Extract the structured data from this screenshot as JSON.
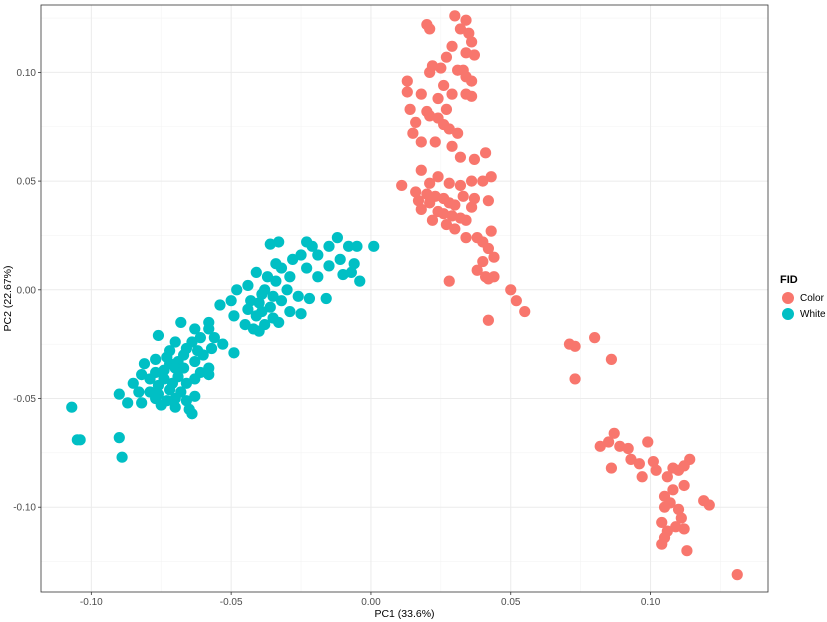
{
  "chart_data": {
    "type": "scatter",
    "title": "",
    "xlabel": "PC1 (33.6%)",
    "ylabel": "PC2 (22.67%)",
    "xlim": [
      -0.118,
      0.142
    ],
    "ylim": [
      -0.139,
      0.131
    ],
    "xticks": [
      -0.1,
      -0.05,
      0.0,
      0.05,
      0.1
    ],
    "xtick_labels": [
      "-0.10",
      "-0.05",
      "0.00",
      "0.05",
      "0.10"
    ],
    "yticks": [
      0.1,
      0.05,
      0.0,
      -0.05,
      -0.1
    ],
    "ytick_labels": [
      "0.10",
      "0.05",
      "0.00",
      "-0.05",
      "-0.10"
    ],
    "grid": true,
    "legend": {
      "title": "FID",
      "placement": "right"
    },
    "series": [
      {
        "name": "Color",
        "color": "#F8766D",
        "points": [
          [
            0.03,
            0.126
          ],
          [
            0.034,
            0.124
          ],
          [
            0.032,
            0.12
          ],
          [
            0.035,
            0.118
          ],
          [
            0.02,
            0.122
          ],
          [
            0.021,
            0.12
          ],
          [
            0.036,
            0.114
          ],
          [
            0.029,
            0.112
          ],
          [
            0.034,
            0.109
          ],
          [
            0.037,
            0.108
          ],
          [
            0.027,
            0.107
          ],
          [
            0.022,
            0.103
          ],
          [
            0.025,
            0.102
          ],
          [
            0.031,
            0.101
          ],
          [
            0.033,
            0.101
          ],
          [
            0.021,
            0.1
          ],
          [
            0.034,
            0.098
          ],
          [
            0.036,
            0.096
          ],
          [
            0.013,
            0.096
          ],
          [
            0.026,
            0.094
          ],
          [
            0.029,
            0.09
          ],
          [
            0.034,
            0.09
          ],
          [
            0.013,
            0.091
          ],
          [
            0.018,
            0.09
          ],
          [
            0.024,
            0.088
          ],
          [
            0.036,
            0.089
          ],
          [
            0.014,
            0.083
          ],
          [
            0.02,
            0.082
          ],
          [
            0.027,
            0.083
          ],
          [
            0.021,
            0.08
          ],
          [
            0.024,
            0.079
          ],
          [
            0.016,
            0.077
          ],
          [
            0.026,
            0.076
          ],
          [
            0.028,
            0.074
          ],
          [
            0.015,
            0.072
          ],
          [
            0.018,
            0.068
          ],
          [
            0.023,
            0.068
          ],
          [
            0.031,
            0.072
          ],
          [
            0.029,
            0.066
          ],
          [
            0.041,
            0.063
          ],
          [
            0.032,
            0.061
          ],
          [
            0.037,
            0.06
          ],
          [
            0.043,
            0.052
          ],
          [
            0.018,
            0.055
          ],
          [
            0.024,
            0.052
          ],
          [
            0.021,
            0.049
          ],
          [
            0.028,
            0.049
          ],
          [
            0.032,
            0.048
          ],
          [
            0.036,
            0.05
          ],
          [
            0.04,
            0.05
          ],
          [
            0.011,
            0.048
          ],
          [
            0.016,
            0.045
          ],
          [
            0.02,
            0.044
          ],
          [
            0.023,
            0.043
          ],
          [
            0.026,
            0.042
          ],
          [
            0.033,
            0.043
          ],
          [
            0.037,
            0.042
          ],
          [
            0.042,
            0.041
          ],
          [
            0.017,
            0.041
          ],
          [
            0.021,
            0.04
          ],
          [
            0.028,
            0.04
          ],
          [
            0.03,
            0.039
          ],
          [
            0.036,
            0.038
          ],
          [
            0.018,
            0.037
          ],
          [
            0.024,
            0.036
          ],
          [
            0.026,
            0.035
          ],
          [
            0.029,
            0.034
          ],
          [
            0.032,
            0.033
          ],
          [
            0.034,
            0.032
          ],
          [
            0.022,
            0.032
          ],
          [
            0.027,
            0.03
          ],
          [
            0.03,
            0.028
          ],
          [
            0.043,
            0.027
          ],
          [
            0.038,
            0.024
          ],
          [
            0.034,
            0.024
          ],
          [
            0.04,
            0.022
          ],
          [
            0.042,
            0.019
          ],
          [
            0.044,
            0.015
          ],
          [
            0.04,
            0.013
          ],
          [
            0.038,
            0.009
          ],
          [
            0.041,
            0.006
          ],
          [
            0.044,
            0.006
          ],
          [
            0.042,
            0.005
          ],
          [
            0.028,
            0.004
          ],
          [
            0.05,
            0.0
          ],
          [
            0.052,
            -0.005
          ],
          [
            0.055,
            -0.01
          ],
          [
            0.042,
            -0.014
          ],
          [
            0.071,
            -0.025
          ],
          [
            0.073,
            -0.026
          ],
          [
            0.08,
            -0.022
          ],
          [
            0.086,
            -0.032
          ],
          [
            0.073,
            -0.041
          ],
          [
            0.087,
            -0.066
          ],
          [
            0.085,
            -0.07
          ],
          [
            0.082,
            -0.072
          ],
          [
            0.089,
            -0.072
          ],
          [
            0.092,
            -0.073
          ],
          [
            0.099,
            -0.07
          ],
          [
            0.093,
            -0.078
          ],
          [
            0.096,
            -0.08
          ],
          [
            0.101,
            -0.079
          ],
          [
            0.114,
            -0.078
          ],
          [
            0.112,
            -0.081
          ],
          [
            0.108,
            -0.082
          ],
          [
            0.11,
            -0.083
          ],
          [
            0.086,
            -0.082
          ],
          [
            0.102,
            -0.083
          ],
          [
            0.097,
            -0.086
          ],
          [
            0.106,
            -0.086
          ],
          [
            0.112,
            -0.09
          ],
          [
            0.108,
            -0.092
          ],
          [
            0.105,
            -0.095
          ],
          [
            0.107,
            -0.098
          ],
          [
            0.11,
            -0.101
          ],
          [
            0.119,
            -0.097
          ],
          [
            0.121,
            -0.099
          ],
          [
            0.105,
            -0.1
          ],
          [
            0.111,
            -0.105
          ],
          [
            0.104,
            -0.107
          ],
          [
            0.109,
            -0.109
          ],
          [
            0.106,
            -0.111
          ],
          [
            0.112,
            -0.11
          ],
          [
            0.105,
            -0.114
          ],
          [
            0.104,
            -0.117
          ],
          [
            0.113,
            -0.12
          ],
          [
            0.131,
            -0.131
          ]
        ]
      },
      {
        "name": "White",
        "color": "#00BFC4",
        "points": [
          [
            -0.023,
            0.022
          ],
          [
            -0.033,
            0.022
          ],
          [
            -0.012,
            0.024
          ],
          [
            -0.036,
            0.021
          ],
          [
            -0.021,
            0.02
          ],
          [
            -0.015,
            0.02
          ],
          [
            -0.008,
            0.02
          ],
          [
            0.001,
            0.02
          ],
          [
            -0.005,
            0.02
          ],
          [
            -0.025,
            0.016
          ],
          [
            -0.019,
            0.016
          ],
          [
            -0.011,
            0.014
          ],
          [
            -0.028,
            0.014
          ],
          [
            -0.034,
            0.012
          ],
          [
            -0.006,
            0.012
          ],
          [
            -0.015,
            0.011
          ],
          [
            -0.032,
            0.01
          ],
          [
            -0.023,
            0.01
          ],
          [
            -0.007,
            0.008
          ],
          [
            -0.041,
            0.008
          ],
          [
            -0.037,
            0.006
          ],
          [
            -0.019,
            0.006
          ],
          [
            -0.01,
            0.007
          ],
          [
            -0.029,
            0.006
          ],
          [
            -0.034,
            0.004
          ],
          [
            -0.004,
            0.004
          ],
          [
            -0.044,
            0.002
          ],
          [
            -0.038,
            0.0
          ],
          [
            -0.03,
            0.0
          ],
          [
            -0.048,
            0.0
          ],
          [
            -0.039,
            -0.002
          ],
          [
            -0.035,
            -0.003
          ],
          [
            -0.026,
            -0.003
          ],
          [
            -0.043,
            -0.005
          ],
          [
            -0.05,
            -0.005
          ],
          [
            -0.032,
            -0.005
          ],
          [
            -0.04,
            -0.006
          ],
          [
            -0.016,
            -0.004
          ],
          [
            -0.022,
            -0.004
          ],
          [
            -0.054,
            -0.007
          ],
          [
            -0.036,
            -0.008
          ],
          [
            -0.044,
            -0.009
          ],
          [
            -0.039,
            -0.01
          ],
          [
            -0.029,
            -0.01
          ],
          [
            -0.025,
            -0.011
          ],
          [
            -0.041,
            -0.012
          ],
          [
            -0.049,
            -0.012
          ],
          [
            -0.035,
            -0.013
          ],
          [
            -0.033,
            -0.015
          ],
          [
            -0.038,
            -0.016
          ],
          [
            -0.058,
            -0.015
          ],
          [
            -0.045,
            -0.016
          ],
          [
            -0.042,
            -0.018
          ],
          [
            -0.04,
            -0.019
          ],
          [
            -0.058,
            -0.018
          ],
          [
            -0.063,
            -0.018
          ],
          [
            -0.068,
            -0.015
          ],
          [
            -0.056,
            -0.022
          ],
          [
            -0.061,
            -0.022
          ],
          [
            -0.076,
            -0.021
          ],
          [
            -0.053,
            -0.025
          ],
          [
            -0.064,
            -0.024
          ],
          [
            -0.07,
            -0.024
          ],
          [
            -0.057,
            -0.027
          ],
          [
            -0.066,
            -0.027
          ],
          [
            -0.072,
            -0.028
          ],
          [
            -0.062,
            -0.028
          ],
          [
            -0.06,
            -0.03
          ],
          [
            -0.067,
            -0.03
          ],
          [
            -0.049,
            -0.029
          ],
          [
            -0.073,
            -0.031
          ],
          [
            -0.063,
            -0.033
          ],
          [
            -0.077,
            -0.032
          ],
          [
            -0.069,
            -0.033
          ],
          [
            -0.072,
            -0.034
          ],
          [
            -0.081,
            -0.034
          ],
          [
            -0.07,
            -0.036
          ],
          [
            -0.067,
            -0.036
          ],
          [
            -0.074,
            -0.037
          ],
          [
            -0.058,
            -0.036
          ],
          [
            -0.061,
            -0.038
          ],
          [
            -0.077,
            -0.038
          ],
          [
            -0.082,
            -0.039
          ],
          [
            -0.069,
            -0.04
          ],
          [
            -0.063,
            -0.041
          ],
          [
            -0.058,
            -0.039
          ],
          [
            -0.079,
            -0.041
          ],
          [
            -0.074,
            -0.041
          ],
          [
            -0.071,
            -0.043
          ],
          [
            -0.066,
            -0.043
          ],
          [
            -0.076,
            -0.044
          ],
          [
            -0.085,
            -0.043
          ],
          [
            -0.072,
            -0.046
          ],
          [
            -0.068,
            -0.047
          ],
          [
            -0.079,
            -0.047
          ],
          [
            -0.083,
            -0.047
          ],
          [
            -0.076,
            -0.048
          ],
          [
            -0.09,
            -0.048
          ],
          [
            -0.063,
            -0.049
          ],
          [
            -0.077,
            -0.05
          ],
          [
            -0.07,
            -0.05
          ],
          [
            -0.073,
            -0.051
          ],
          [
            -0.066,
            -0.051
          ],
          [
            -0.082,
            -0.052
          ],
          [
            -0.075,
            -0.053
          ],
          [
            -0.07,
            -0.054
          ],
          [
            -0.087,
            -0.052
          ],
          [
            -0.065,
            -0.055
          ],
          [
            -0.064,
            -0.057
          ],
          [
            -0.107,
            -0.054
          ],
          [
            -0.104,
            -0.069
          ],
          [
            -0.105,
            -0.069
          ],
          [
            -0.09,
            -0.068
          ],
          [
            -0.089,
            -0.077
          ]
        ]
      }
    ]
  }
}
